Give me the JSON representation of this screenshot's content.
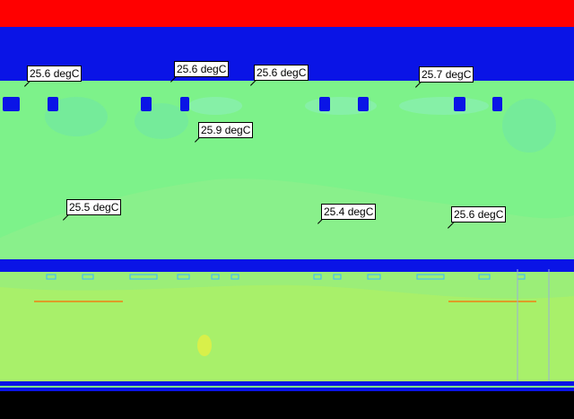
{
  "colors": {
    "hot_band": "#ff0000",
    "duct_blue": "#0a14e6",
    "room_green": "#7df28a",
    "lower_green": "#a8f06a",
    "floor_dark": "#000000",
    "grille": "#1e54ff",
    "leader_orange": "#ff6a00",
    "label_bg": "#ffffff",
    "label_text": "#000000"
  },
  "probes": [
    {
      "text": "25.6 degC"
    },
    {
      "text": "25.6 degC"
    },
    {
      "text": "25.6 degC"
    },
    {
      "text": "25.7 degC"
    },
    {
      "text": "25.9 degC"
    },
    {
      "text": "25.5 degC"
    },
    {
      "text": "25.4 degC"
    },
    {
      "text": "25.6 degC"
    }
  ]
}
